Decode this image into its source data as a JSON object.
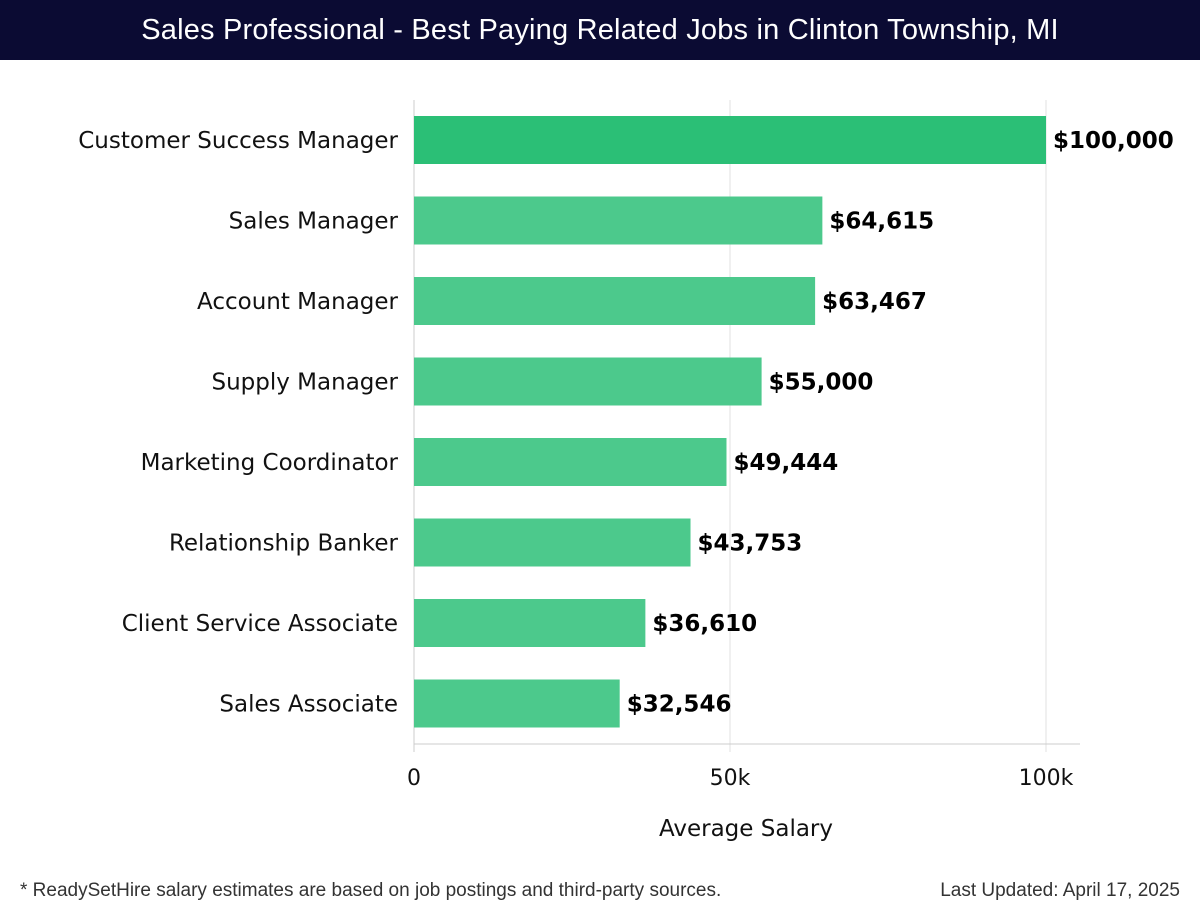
{
  "header": {
    "title": "Sales Professional - Best Paying Related Jobs in Clinton Township, MI"
  },
  "chart_data": {
    "type": "bar",
    "orientation": "horizontal",
    "title": "Sales Professional - Best Paying Related Jobs in Clinton Township, MI",
    "xlabel": "Average Salary",
    "ylabel": "",
    "xlim": [
      0,
      105000
    ],
    "ticks": [
      {
        "value": 0,
        "label": "0"
      },
      {
        "value": 50000,
        "label": "50k"
      },
      {
        "value": 100000,
        "label": "100k"
      }
    ],
    "grid": true,
    "categories": [
      "Customer Success Manager",
      "Sales Manager",
      "Account Manager",
      "Supply Manager",
      "Marketing Coordinator",
      "Relationship Banker",
      "Client Service Associate",
      "Sales Associate"
    ],
    "values": [
      100000,
      64615,
      63467,
      55000,
      49444,
      43753,
      36610,
      32546
    ],
    "value_labels": [
      "$100,000",
      "$64,615",
      "$63,467",
      "$55,000",
      "$49,444",
      "$43,753",
      "$36,610",
      "$32,546"
    ],
    "colors": {
      "top_bar": "#2bbf76",
      "bar": "#4cc98c",
      "grid": "#e2e2e2"
    }
  },
  "footer": {
    "note": "* ReadySetHire salary estimates are based on job postings and third-party sources.",
    "updated": "Last Updated: April 17, 2025"
  }
}
